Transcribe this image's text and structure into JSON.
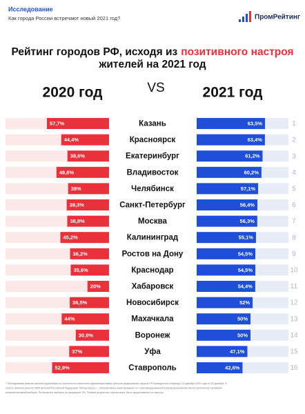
{
  "header": {
    "section": "Исследование",
    "subtitle": "Как города России встречают новый 2021 год?",
    "logo": "ПромРейтинг"
  },
  "chart_data": {
    "type": "paired-bar",
    "title_line1": "Рейтинг городов РФ, исходя из",
    "title_highlight": "позитивного настроя",
    "title_line2": "жителей на 2021 год",
    "left_heading": "2020 год",
    "vs": "VS",
    "right_heading": "2021 год",
    "categories": [
      "Казань",
      "Красноярск",
      "Екатеринбург",
      "Владивосток",
      "Челябинск",
      "Санкт-Петербург",
      "Москва",
      "Калининград",
      "Ростов на Дону",
      "Краснодар",
      "Хабаровск",
      "Новосибирск",
      "Махачкала",
      "Воронеж",
      "Уфа",
      "Ставрополь"
    ],
    "ranks": [
      1,
      2,
      3,
      4,
      5,
      6,
      7,
      8,
      9,
      10,
      11,
      12,
      13,
      14,
      15,
      16
    ],
    "series": [
      {
        "name": "2020",
        "color": "#e8313a",
        "values": [
          57.7,
          44.4,
          38.6,
          48.8,
          38,
          39.3,
          38.8,
          45.2,
          36.2,
          35.6,
          20,
          36.5,
          44,
          30.9,
          37,
          52.9
        ],
        "value_labels": [
          "57,7%",
          "44,4%",
          "38,6%",
          "48,8%",
          "38%",
          "39,3%",
          "38,8%",
          "45,2%",
          "36,2%",
          "35,6%",
          "20%",
          "36,5%",
          "44%",
          "30,9%",
          "37%",
          "52,9%"
        ]
      },
      {
        "name": "2021",
        "color": "#1f4fd8",
        "values": [
          63.5,
          63.4,
          61.2,
          60.2,
          57.1,
          56.4,
          56.3,
          55.1,
          54.5,
          54.5,
          54.4,
          52,
          50,
          50,
          47.1,
          42.6
        ],
        "value_labels": [
          "63,5%",
          "63,4%",
          "61,2%",
          "60,2%",
          "57,1%",
          "56,4%",
          "56,3%",
          "55,1%",
          "54,5%",
          "54,5%",
          "54,4%",
          "52%",
          "50%",
          "50%",
          "47,1%",
          "42,6%"
        ]
      }
    ]
  },
  "footnote": [
    "* Обследование мнения жителей крупнейших по численности населения административных центров федеральных округов РФ проводилось в период с 15 декабря 2020 года по 25 декабря. В",
    "опросе приняли участие 2600 жителей Российской Федерации. Метод опроса — интерактивное анкетирование по стратифицированной (пропорциональной) многоступенчатой случайной",
    "репрезентативной выборке. Погрешность выборки не превышает 2%. Полные результаты опроса могут быть предоставлены по запросу."
  ]
}
